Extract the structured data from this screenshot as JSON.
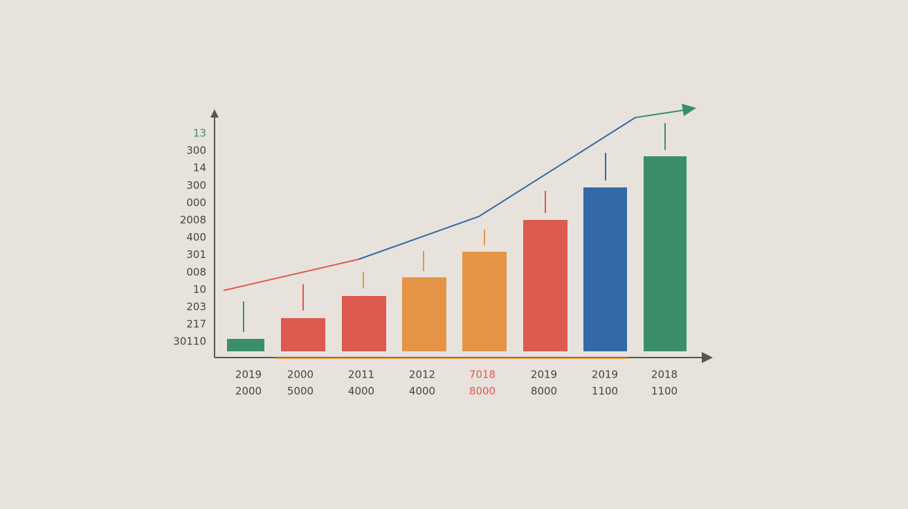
{
  "y_axis_labels": [
    "13",
    "300",
    "14",
    "300",
    "000",
    "2008",
    "400",
    "301",
    "008",
    "10",
    "203",
    "217",
    "30110"
  ],
  "x_labels": [
    [
      "2019",
      "2000"
    ],
    [
      "2000",
      "5000"
    ],
    [
      "2011",
      "4000"
    ],
    [
      "2012",
      "4000"
    ],
    [
      "7018",
      "8000"
    ],
    [
      "2019",
      "8000"
    ],
    [
      "2019",
      "1100"
    ],
    [
      "2018",
      "1100"
    ]
  ]
}
